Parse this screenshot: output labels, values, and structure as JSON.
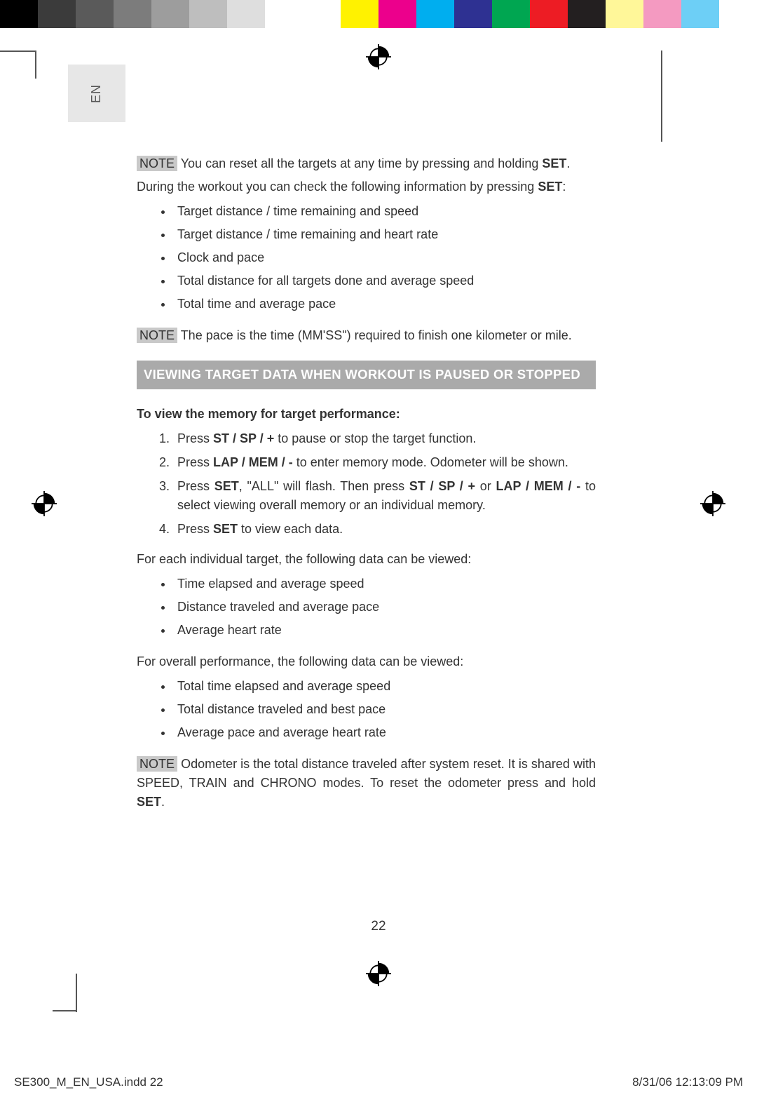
{
  "colorbar": {
    "colors": [
      "#000000",
      "#3b3b3b",
      "#5a5a5a",
      "#7c7c7c",
      "#9d9d9d",
      "#bebebe",
      "#dedede",
      "#ffffff",
      "#ffffff",
      "#fff200",
      "#ec008c",
      "#00aeef",
      "#2e3192",
      "#00a651",
      "#ed1c24",
      "#231f20",
      "#fff799",
      "#f49ac1",
      "#6dcff6",
      "#ffffff"
    ]
  },
  "lang_tab": "EN",
  "notes": {
    "n1_pre": "NOTE",
    "n1_text_a": " You can reset all the targets at any time by pressing and holding ",
    "n1_set": "SET",
    "n1_text_b": ".",
    "p2_a": "During the workout you can check the following information by pressing ",
    "p2_set": "SET",
    "p2_b": ":",
    "n2_pre": "NOTE",
    "n2_text": " The pace is the time (MM'SS\") required to finish one kilometer or mile.",
    "n3_pre": "NOTE",
    "n3_text_a": " Odometer is the total distance traveled after system reset. It is shared with SPEED, TRAIN and CHRONO modes. To reset the odometer press and hold ",
    "n3_set": "SET",
    "n3_text_b": "."
  },
  "bullets1": [
    "Target distance / time remaining and speed",
    "Target distance / time remaining and heart rate",
    "Clock and pace",
    "Total distance for all targets done and average speed",
    "Total time and average pace"
  ],
  "section_heading": "VIEWING TARGET DATA WHEN WORKOUT IS PAUSED OR STOPPED",
  "subheading": "To view the memory for target performance:",
  "steps": {
    "s1_a": "Press ",
    "s1_b": "ST / SP / +",
    "s1_c": " to pause or stop the target function.",
    "s2_a": "Press ",
    "s2_b": "LAP / MEM / -",
    "s2_c": " to enter memory mode. Odometer will be shown.",
    "s3_a": "Press ",
    "s3_b": "SET",
    "s3_c": ", \"ALL\" will flash. Then press ",
    "s3_d": "ST / SP / +",
    "s3_e": " or ",
    "s3_f": "LAP / MEM / -",
    "s3_g": " to select viewing overall memory or an individual memory.",
    "s4_a": "Press ",
    "s4_b": "SET",
    "s4_c": " to view each data."
  },
  "para_individual": "For each individual target, the following data can be viewed:",
  "bullets2": [
    "Time elapsed and average speed",
    "Distance traveled and average pace",
    "Average heart rate"
  ],
  "para_overall": "For overall performance, the following data can be viewed:",
  "bullets3": [
    "Total time elapsed and average speed",
    "Total distance traveled and best pace",
    "Average pace and average heart rate"
  ],
  "page_number": "22",
  "footer": {
    "left": "SE300_M_EN_USA.indd   22",
    "right": "8/31/06   12:13:09 PM"
  }
}
